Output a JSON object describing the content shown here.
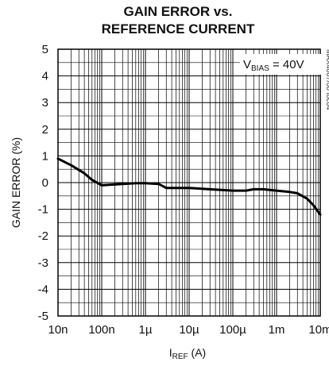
{
  "chart_data": {
    "type": "line",
    "title_lines": [
      "GAIN ERROR vs.",
      "REFERENCE CURRENT"
    ],
    "xlabel_main": "I",
    "xlabel_sub": "REF",
    "xlabel_unit": " (A)",
    "ylabel": "GAIN ERROR (%)",
    "x_scale": "log",
    "xlim": [
      1e-08,
      0.01
    ],
    "ylim": [
      -5,
      5
    ],
    "x_ticks": [
      {
        "value": 1e-08,
        "label": "10n"
      },
      {
        "value": 1e-07,
        "label": "100n"
      },
      {
        "value": 1e-06,
        "label": "1µ"
      },
      {
        "value": 1e-05,
        "label": "10µ"
      },
      {
        "value": 0.0001,
        "label": "100µ"
      },
      {
        "value": 0.001,
        "label": "1m"
      },
      {
        "value": 0.01,
        "label": "10m"
      }
    ],
    "y_ticks": [
      {
        "value": 5,
        "label": "5"
      },
      {
        "value": 4,
        "label": "4"
      },
      {
        "value": 3,
        "label": "3"
      },
      {
        "value": 2,
        "label": "2"
      },
      {
        "value": 1,
        "label": "1"
      },
      {
        "value": 0,
        "label": "0"
      },
      {
        "value": -1,
        "label": "-1"
      },
      {
        "value": -2,
        "label": "-2"
      },
      {
        "value": -3,
        "label": "-3"
      },
      {
        "value": -4,
        "label": "-4"
      },
      {
        "value": -5,
        "label": "-5"
      }
    ],
    "grid": true,
    "annotation": {
      "main": "V",
      "sub": "BIAS",
      "rest": " = 40V",
      "position": "top-right"
    },
    "chart_id": "MAX4007/08 toc04",
    "series": [
      {
        "x": [
          1e-08,
          2e-08,
          4e-08,
          6e-08,
          1e-07,
          1.5e-07,
          3e-07,
          6e-07,
          1e-06,
          2e-06,
          3e-06,
          5e-06,
          1e-05,
          3e-05,
          0.0001,
          0.0002,
          0.0003,
          0.0005,
          0.001,
          0.002,
          0.003,
          0.005,
          0.007,
          0.01
        ],
        "y": [
          0.9,
          0.65,
          0.35,
          0.1,
          -0.1,
          -0.08,
          -0.05,
          -0.02,
          -0.02,
          -0.05,
          -0.2,
          -0.2,
          -0.2,
          -0.25,
          -0.3,
          -0.3,
          -0.25,
          -0.25,
          -0.3,
          -0.35,
          -0.4,
          -0.6,
          -0.85,
          -1.2
        ],
        "color": "#000000"
      }
    ]
  }
}
